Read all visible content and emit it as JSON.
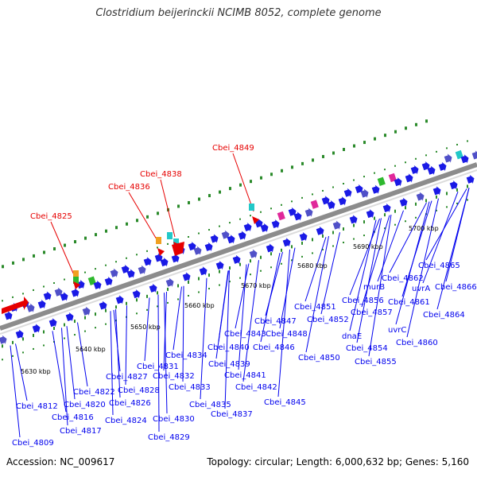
{
  "header": {
    "title": "Clostridium beijerinckii NCIMB 8052, complete genome"
  },
  "footer": {
    "accession": "Accession: NC_009617",
    "topology": "Topology: circular; Length: 6,000,632 bp; Genes: 5,160"
  },
  "scale": [
    {
      "label": "5630 kbp"
    },
    {
      "label": "5640 kbp"
    },
    {
      "label": "5650 kbp"
    },
    {
      "label": "5660 kbp"
    },
    {
      "label": "5670 kbp"
    },
    {
      "label": "5680 kbp"
    },
    {
      "label": "5690 kbp"
    },
    {
      "label": "5700 kbp"
    }
  ],
  "highlighted_genes": [
    {
      "label": "Cbei_4825"
    },
    {
      "label": "Cbei_4836"
    },
    {
      "label": "Cbei_4838"
    },
    {
      "label": "Cbei_4849"
    }
  ],
  "gene_labels": [
    {
      "label": "Cbei_4809"
    },
    {
      "label": "Cbei_4812"
    },
    {
      "label": "Cbei_4816"
    },
    {
      "label": "Cbei_4817"
    },
    {
      "label": "Cbei_4820"
    },
    {
      "label": "Cbei_4822"
    },
    {
      "label": "Cbei_4824"
    },
    {
      "label": "Cbei_4826"
    },
    {
      "label": "Cbei_4827"
    },
    {
      "label": "Cbei_4828"
    },
    {
      "label": "Cbei_4829"
    },
    {
      "label": "Cbei_4830"
    },
    {
      "label": "Cbei_4831"
    },
    {
      "label": "Cbei_4832"
    },
    {
      "label": "Cbei_4833"
    },
    {
      "label": "Cbei_4834"
    },
    {
      "label": "Cbei_4835"
    },
    {
      "label": "Cbei_4837"
    },
    {
      "label": "Cbei_4839"
    },
    {
      "label": "Cbei_4840"
    },
    {
      "label": "Cbei_4841"
    },
    {
      "label": "Cbei_4842"
    },
    {
      "label": "Cbei_4843"
    },
    {
      "label": "Cbei_4845"
    },
    {
      "label": "Cbei_4846"
    },
    {
      "label": "Cbei_4847"
    },
    {
      "label": "Cbei_4848"
    },
    {
      "label": "Cbei_4850"
    },
    {
      "label": "Cbei_4851"
    },
    {
      "label": "Cbei_4852"
    },
    {
      "label": "dnaE"
    },
    {
      "label": "Cbei_4854"
    },
    {
      "label": "Cbei_4855"
    },
    {
      "label": "Cbei_4856"
    },
    {
      "label": "Cbei_4857"
    },
    {
      "label": "murB"
    },
    {
      "label": "uvrC"
    },
    {
      "label": "Cbei_4860"
    },
    {
      "label": "Cbei_4861"
    },
    {
      "label": "Cbei_4862"
    },
    {
      "label": "uvrA"
    },
    {
      "label": "Cbei_4864"
    },
    {
      "label": "Cbei_4865"
    },
    {
      "label": "Cbei_4866"
    }
  ],
  "colors": {
    "backbone": "#8c8c8c",
    "gene_forward": "#1a1ae6",
    "highlight": "#e60000",
    "label_blue": "#0000ee",
    "label_red": "#e60000",
    "dots": "#2a8a2a",
    "cyan": "#22c8c8",
    "green": "#2eb82e",
    "magenta": "#e0289a",
    "olive": "#8aa030",
    "grey": "#b0b0b0",
    "orange": "#f0a020"
  },
  "icons": {
    "forward_gene": "arrow-right-shape",
    "highlight_marker": "red-triangle"
  }
}
